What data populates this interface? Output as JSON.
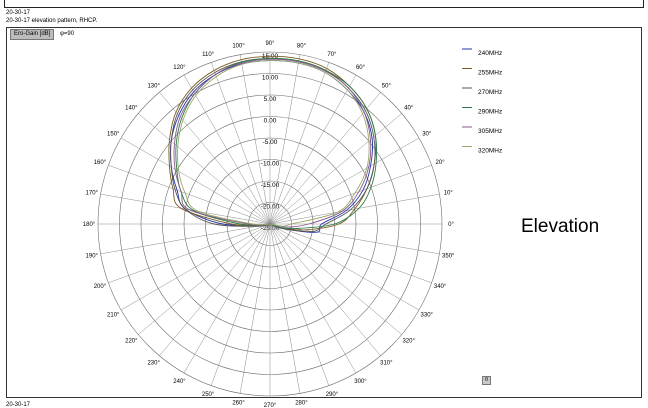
{
  "header": {
    "title_short": "20-30-17",
    "title_long": "20-30-17 elevation pattern, RHCP.",
    "gain_label": "Ero-Gain [dB]",
    "phi_label": "φ=90",
    "side_label": "Elevation",
    "corner_button": "θ",
    "bottom_text": "20-30-17"
  },
  "chart_data": {
    "type": "polar",
    "title": "20-30-17 elevation pattern, RHCP.",
    "radial_unit": "dB",
    "radial_range": [
      -25,
      15
    ],
    "radial_ticks": [
      "15.00",
      "10.00",
      "5.00",
      "0.00",
      "-5.00",
      "-10.00",
      "-15.00",
      "-20.00",
      "-25.00"
    ],
    "angular_step_deg": 10,
    "angular_ticks": [
      "0°",
      "10°",
      "20°",
      "30°",
      "40°",
      "50°",
      "60°",
      "70°",
      "80°",
      "90°",
      "100°",
      "110°",
      "120°",
      "130°",
      "140°",
      "150°",
      "160°",
      "170°",
      "180°",
      "190°",
      "200°",
      "210°",
      "220°",
      "230°",
      "240°",
      "250°",
      "260°",
      "270°",
      "280°",
      "290°",
      "300°",
      "310°",
      "320°",
      "330°",
      "340°",
      "350°"
    ],
    "legend_position": "top-right",
    "angles_deg": [
      0,
      10,
      20,
      30,
      40,
      50,
      60,
      70,
      80,
      90,
      100,
      110,
      120,
      130,
      140,
      150,
      160,
      170,
      180,
      190,
      200,
      210,
      220,
      230,
      240,
      250,
      260,
      270,
      280,
      290,
      300,
      310,
      320,
      330,
      340,
      350
    ],
    "series": [
      {
        "name": "240MHz",
        "color": "#2233aa",
        "values": [
          -13,
          -7,
          -2,
          2,
          6,
          9,
          11,
          12.5,
          13,
          13,
          12.8,
          12,
          10.5,
          8,
          5,
          1.5,
          -2,
          -5,
          -14,
          -24,
          -25,
          -25,
          -25,
          -25,
          -25,
          -25,
          -25,
          -25,
          -25,
          -25,
          -25,
          -25,
          -25,
          -25,
          -22,
          -14
        ]
      },
      {
        "name": "255MHz",
        "color": "#7a5c1e",
        "values": [
          -9,
          -5,
          -1,
          3,
          7,
          10,
          12,
          13.5,
          14,
          14,
          13.8,
          13,
          11.5,
          9,
          5.5,
          2,
          -1,
          -4,
          -16,
          -23,
          -25,
          -25,
          -25,
          -25,
          -25,
          -25,
          -25,
          -25,
          -25,
          -25,
          -25,
          -25,
          -25,
          -25,
          -23,
          -17
        ]
      },
      {
        "name": "270MHz",
        "color": "#555555",
        "values": [
          -12,
          -6,
          -1,
          3,
          6.5,
          9.5,
          11.5,
          13,
          13.5,
          13.5,
          13.3,
          12.5,
          11,
          8.5,
          5,
          1.5,
          -1.5,
          -5,
          -12,
          -22,
          -25,
          -25,
          -25,
          -25,
          -25,
          -25,
          -25,
          -25,
          -25,
          -25,
          -25,
          -25,
          -25,
          -25,
          -22,
          -15
        ]
      },
      {
        "name": "290MHz",
        "color": "#2a7a4a",
        "values": [
          -10,
          -4,
          0,
          3.5,
          7,
          10,
          12,
          13,
          13.5,
          13.5,
          13.2,
          12,
          10,
          7,
          3.5,
          0,
          -3,
          -7,
          -18,
          -24,
          -25,
          -25,
          -25,
          -25,
          -25,
          -25,
          -25,
          -25,
          -25,
          -25,
          -25,
          -25,
          -25,
          -25,
          -23,
          -19
        ]
      },
      {
        "name": "305MHz",
        "color": "#8a5a8a",
        "values": [
          -16,
          -8,
          -3,
          1.5,
          5.5,
          9,
          11.5,
          12.8,
          13.3,
          13.3,
          13,
          12,
          10,
          7.5,
          4,
          0.5,
          -3,
          -6,
          -20,
          -25,
          -25,
          -25,
          -25,
          -25,
          -25,
          -25,
          -25,
          -25,
          -25,
          -25,
          -25,
          -25,
          -25,
          -25,
          -25,
          -21
        ]
      },
      {
        "name": "320MHz",
        "color": "#9aa86a",
        "values": [
          -20,
          -9,
          -4,
          1,
          5,
          8.5,
          11,
          12.5,
          13,
          13,
          12.7,
          11.5,
          9.5,
          6.5,
          3,
          -0.5,
          -4,
          -8,
          -21,
          -25,
          -25,
          -25,
          -25,
          -25,
          -25,
          -25,
          -25,
          -25,
          -25,
          -25,
          -25,
          -25,
          -25,
          -25,
          -25,
          -22
        ]
      }
    ]
  }
}
